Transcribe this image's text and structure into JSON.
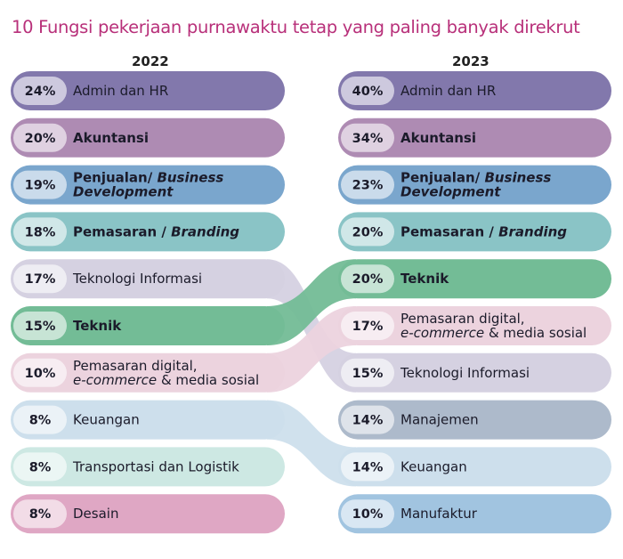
{
  "title": "10 Fungsi pekerjaan purnawaktu tetap yang paling banyak direkrut",
  "chart_data": {
    "type": "slope",
    "title": "10 Fungsi pekerjaan purnawaktu tetap yang paling banyak direkrut",
    "years": [
      "2022",
      "2023"
    ],
    "left": [
      {
        "key": "admin",
        "pct": "24%",
        "value": 24
      },
      {
        "key": "akuntansi",
        "pct": "20%",
        "value": 20
      },
      {
        "key": "penjualan",
        "pct": "19%",
        "value": 19
      },
      {
        "key": "pemasaran",
        "pct": "18%",
        "value": 18
      },
      {
        "key": "ti",
        "pct": "17%",
        "value": 17
      },
      {
        "key": "teknik",
        "pct": "15%",
        "value": 15
      },
      {
        "key": "digital",
        "pct": "10%",
        "value": 10
      },
      {
        "key": "keuangan",
        "pct": "8%",
        "value": 8
      },
      {
        "key": "transportasi",
        "pct": "8%",
        "value": 8
      },
      {
        "key": "desain",
        "pct": "8%",
        "value": 8
      }
    ],
    "right": [
      {
        "key": "admin",
        "pct": "40%",
        "value": 40
      },
      {
        "key": "akuntansi",
        "pct": "34%",
        "value": 34
      },
      {
        "key": "penjualan",
        "pct": "23%",
        "value": 23
      },
      {
        "key": "pemasaran",
        "pct": "20%",
        "value": 20
      },
      {
        "key": "teknik",
        "pct": "20%",
        "value": 20
      },
      {
        "key": "digital",
        "pct": "17%",
        "value": 17
      },
      {
        "key": "ti",
        "pct": "15%",
        "value": 15
      },
      {
        "key": "manajemen",
        "pct": "14%",
        "value": 14
      },
      {
        "key": "keuangan",
        "pct": "14%",
        "value": 14
      },
      {
        "key": "manufaktur",
        "pct": "10%",
        "value": 10
      }
    ],
    "categories": {
      "admin": {
        "lines": [
          [
            {
              "t": "Admin dan HR"
            }
          ]
        ],
        "color": "#8278ac",
        "bold": false
      },
      "akuntansi": {
        "lines": [
          [
            {
              "t": "Akuntansi"
            }
          ]
        ],
        "color": "#ae8bb3",
        "bold": true
      },
      "penjualan": {
        "lines": [
          [
            {
              "t": "Penjualan/ "
            },
            {
              "t": "Business",
              "i": true
            }
          ],
          [
            {
              "t": "Development",
              "i": true
            }
          ]
        ],
        "color": "#7aa6cd",
        "bold": true
      },
      "pemasaran": {
        "lines": [
          [
            {
              "t": "Pemasaran / "
            },
            {
              "t": "Branding",
              "i": true
            }
          ]
        ],
        "color": "#8ac4c6",
        "bold": true
      },
      "ti": {
        "lines": [
          [
            {
              "t": "Teknologi Informasi"
            }
          ]
        ],
        "color": "#d5d1e1",
        "bold": false
      },
      "teknik": {
        "lines": [
          [
            {
              "t": "Teknik"
            }
          ]
        ],
        "color": "#73bc96",
        "bold": true
      },
      "digital": {
        "lines": [
          [
            {
              "t": "Pemasaran digital,"
            }
          ],
          [
            {
              "t": "e-commerce",
              "i": true
            },
            {
              "t": " & media sosial"
            }
          ]
        ],
        "color": "#ecd3de",
        "bold": false
      },
      "keuangan": {
        "lines": [
          [
            {
              "t": "Keuangan"
            }
          ]
        ],
        "color": "#cddfec",
        "bold": false
      },
      "transportasi": {
        "lines": [
          [
            {
              "t": "Transportasi dan Logistik"
            }
          ]
        ],
        "color": "#cde8e3",
        "bold": false
      },
      "desain": {
        "lines": [
          [
            {
              "t": "Desain"
            }
          ]
        ],
        "color": "#dfa7c4",
        "bold": false
      },
      "manajemen": {
        "lines": [
          [
            {
              "t": "Manajemen"
            }
          ]
        ],
        "color": "#adbacb",
        "bold": false
      },
      "manufaktur": {
        "lines": [
          [
            {
              "t": "Manufaktur"
            }
          ]
        ],
        "color": "#a1c4e0",
        "bold": false
      }
    }
  }
}
